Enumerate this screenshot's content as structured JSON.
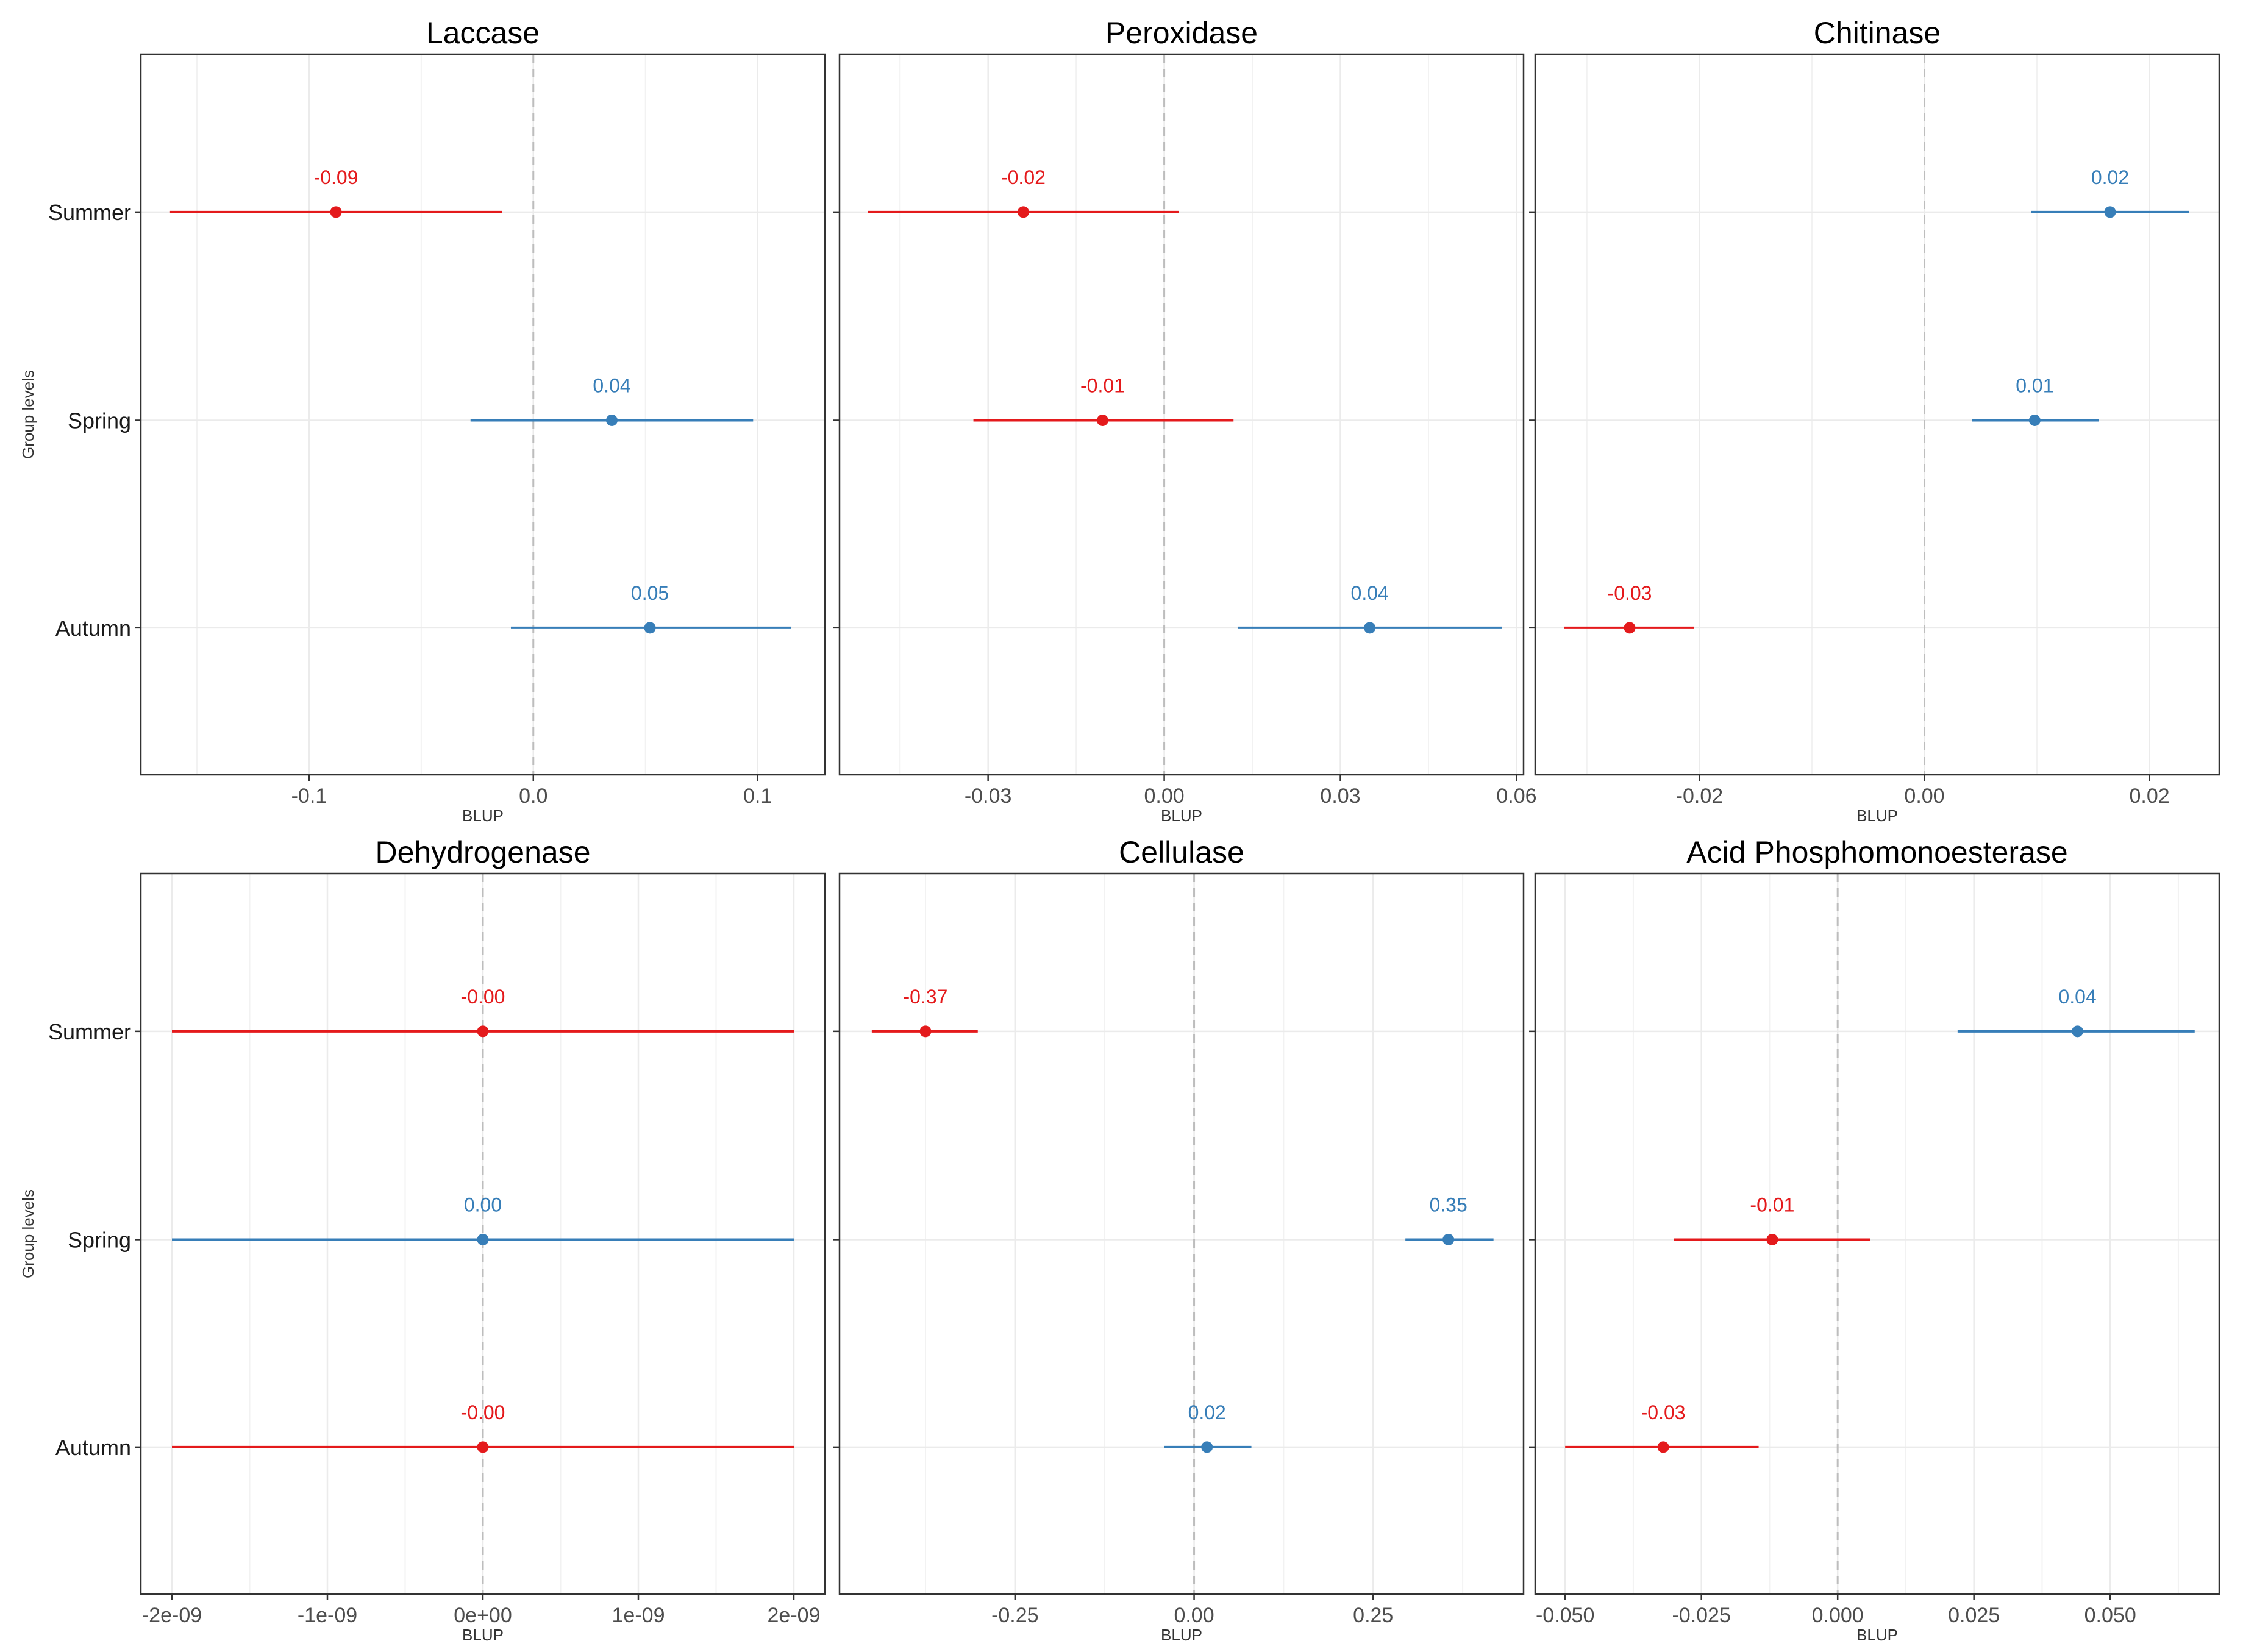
{
  "colors": {
    "negative": "#e41a1c",
    "positive": "#377eb8",
    "grid": "#ebebeb",
    "zero_line": "#bdbdbd",
    "frame": "#333333"
  },
  "chart_data": [
    {
      "type": "forest",
      "title": "Laccase",
      "xlabel": "BLUP",
      "ylabel": "Group levels",
      "categories": [
        "Summer",
        "Spring",
        "Autumn"
      ],
      "xlim": [
        -0.175,
        0.13
      ],
      "xticks": [
        -0.1,
        0.0,
        0.1
      ],
      "xtick_labels": [
        "-0.1",
        "0.0",
        "0.1"
      ],
      "grid_minor": [
        -0.15,
        -0.05,
        0.05
      ],
      "points": [
        {
          "group": "Summer",
          "estimate": -0.088,
          "lower": -0.162,
          "upper": -0.014,
          "label": "-0.09",
          "sign": "negative"
        },
        {
          "group": "Spring",
          "estimate": 0.035,
          "lower": -0.028,
          "upper": 0.098,
          "label": "0.04",
          "sign": "positive"
        },
        {
          "group": "Autumn",
          "estimate": 0.052,
          "lower": -0.01,
          "upper": 0.115,
          "label": "0.05",
          "sign": "positive"
        }
      ]
    },
    {
      "type": "forest",
      "title": "Peroxidase",
      "xlabel": "BLUP",
      "ylabel": "",
      "categories": [
        "Summer",
        "Spring",
        "Autumn"
      ],
      "xlim": [
        -0.0553,
        0.0612
      ],
      "xticks": [
        -0.03,
        0.0,
        0.03,
        0.06
      ],
      "xtick_labels": [
        "-0.03",
        "0.00",
        "0.03",
        "0.06"
      ],
      "grid_minor": [
        -0.045,
        -0.015,
        0.015,
        0.045
      ],
      "points": [
        {
          "group": "Summer",
          "estimate": -0.024,
          "lower": -0.0505,
          "upper": 0.0025,
          "label": "-0.02",
          "sign": "negative"
        },
        {
          "group": "Spring",
          "estimate": -0.0105,
          "lower": -0.0325,
          "upper": 0.0118,
          "label": "-0.01",
          "sign": "negative"
        },
        {
          "group": "Autumn",
          "estimate": 0.035,
          "lower": 0.0125,
          "upper": 0.0575,
          "label": "0.04",
          "sign": "positive"
        }
      ]
    },
    {
      "type": "forest",
      "title": "Chitinase",
      "xlabel": "BLUP",
      "ylabel": "",
      "categories": [
        "Summer",
        "Spring",
        "Autumn"
      ],
      "xlim": [
        -0.0346,
        0.0262
      ],
      "xticks": [
        -0.02,
        0.0,
        0.02
      ],
      "xtick_labels": [
        "-0.02",
        "0.00",
        "0.02"
      ],
      "grid_minor": [
        -0.03,
        -0.01,
        0.01
      ],
      "points": [
        {
          "group": "Summer",
          "estimate": 0.0165,
          "lower": 0.0095,
          "upper": 0.0235,
          "label": "0.02",
          "sign": "positive"
        },
        {
          "group": "Spring",
          "estimate": 0.0098,
          "lower": 0.0042,
          "upper": 0.0155,
          "label": "0.01",
          "sign": "positive"
        },
        {
          "group": "Autumn",
          "estimate": -0.0262,
          "lower": -0.032,
          "upper": -0.0205,
          "label": "-0.03",
          "sign": "negative"
        }
      ]
    },
    {
      "type": "forest",
      "title": "Dehydrogenase",
      "xlabel": "BLUP",
      "ylabel": "Group levels",
      "categories": [
        "Summer",
        "Spring",
        "Autumn"
      ],
      "xlim": [
        -2.2e-09,
        2.2e-09
      ],
      "xticks": [
        -2e-09,
        -1e-09,
        0,
        1e-09,
        2e-09
      ],
      "xtick_labels": [
        "-2e-09",
        "-1e-09",
        "0e+00",
        "1e-09",
        "2e-09"
      ],
      "grid_minor": [
        -1.5e-09,
        -5e-10,
        5e-10,
        1.5e-09
      ],
      "points": [
        {
          "group": "Summer",
          "estimate": 0,
          "lower": -2e-09,
          "upper": 2e-09,
          "label": "-0.00",
          "sign": "negative"
        },
        {
          "group": "Spring",
          "estimate": 0,
          "lower": -2e-09,
          "upper": 2e-09,
          "label": "0.00",
          "sign": "positive"
        },
        {
          "group": "Autumn",
          "estimate": 0,
          "lower": -2e-09,
          "upper": 2e-09,
          "label": "-0.00",
          "sign": "negative"
        }
      ]
    },
    {
      "type": "forest",
      "title": "Cellulase",
      "xlabel": "BLUP",
      "ylabel": "",
      "categories": [
        "Summer",
        "Spring",
        "Autumn"
      ],
      "xlim": [
        -0.495,
        0.46
      ],
      "xticks": [
        -0.25,
        0.0,
        0.25
      ],
      "xtick_labels": [
        "-0.25",
        "0.00",
        "0.25"
      ],
      "grid_minor": [
        -0.375,
        -0.125,
        0.125,
        0.375
      ],
      "points": [
        {
          "group": "Summer",
          "estimate": -0.375,
          "lower": -0.45,
          "upper": -0.302,
          "label": "-0.37",
          "sign": "negative"
        },
        {
          "group": "Spring",
          "estimate": 0.355,
          "lower": 0.295,
          "upper": 0.418,
          "label": "0.35",
          "sign": "positive"
        },
        {
          "group": "Autumn",
          "estimate": 0.018,
          "lower": -0.042,
          "upper": 0.08,
          "label": "0.02",
          "sign": "positive"
        }
      ]
    },
    {
      "type": "forest",
      "title": "Acid Phosphomonoesterase",
      "xlabel": "BLUP",
      "ylabel": "",
      "categories": [
        "Summer",
        "Spring",
        "Autumn"
      ],
      "xlim": [
        -0.0555,
        0.07
      ],
      "xticks": [
        -0.05,
        -0.025,
        0.0,
        0.025,
        0.05
      ],
      "xtick_labels": [
        "-0.050",
        "-0.025",
        "0.000",
        "0.025",
        "0.050"
      ],
      "grid_minor": [
        -0.0375,
        -0.0125,
        0.0125,
        0.0375,
        0.0625
      ],
      "points": [
        {
          "group": "Summer",
          "estimate": 0.044,
          "lower": 0.022,
          "upper": 0.0655,
          "label": "0.04",
          "sign": "positive"
        },
        {
          "group": "Spring",
          "estimate": -0.012,
          "lower": -0.03,
          "upper": 0.006,
          "label": "-0.01",
          "sign": "negative"
        },
        {
          "group": "Autumn",
          "estimate": -0.032,
          "lower": -0.05,
          "upper": -0.0145,
          "label": "-0.03",
          "sign": "negative"
        }
      ]
    }
  ]
}
